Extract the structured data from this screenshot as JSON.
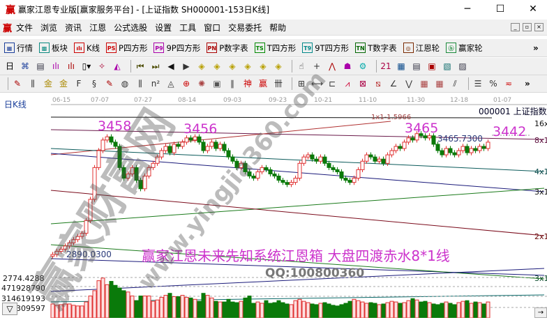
{
  "window": {
    "title": "赢家江恩专业版[赢家服务平台] - [上证指数  SH000001-153日K线]",
    "logo": "赢",
    "minimize": "─",
    "maximize": "☐",
    "close": "✕"
  },
  "menu": {
    "logo": "赢",
    "items": [
      "文件",
      "浏览",
      "资讯",
      "江恩",
      "公式选股",
      "设置",
      "工具",
      "窗口",
      "交易委托",
      "帮助"
    ],
    "mdi_buttons": [
      "_",
      "▫",
      "×"
    ]
  },
  "toolbar1": [
    {
      "icon": "quote-icon",
      "glyph": "▦",
      "color": "#1a3e9a",
      "label": "行情"
    },
    {
      "icon": "sector-icon",
      "glyph": "▩",
      "color": "#0a8a80",
      "label": "板块"
    },
    {
      "icon": "kline-icon",
      "glyph": "ılı",
      "color": "#c00",
      "label": "K线"
    },
    {
      "icon": "ps-icon",
      "glyph": "PS",
      "color": "#c00",
      "label": "P四方形"
    },
    {
      "icon": "p9-icon",
      "glyph": "P9",
      "color": "#a0a",
      "label": "9P四方形"
    },
    {
      "icon": "pn-icon",
      "glyph": "PN",
      "color": "#a00",
      "label": "P数字表"
    },
    {
      "icon": "ts-icon",
      "glyph": "TS",
      "color": "#080",
      "label": "T四方形"
    },
    {
      "icon": "t9-icon",
      "glyph": "T9",
      "color": "#088",
      "label": "9T四方形"
    },
    {
      "icon": "tn-icon",
      "glyph": "TN",
      "color": "#060",
      "label": "T数字表"
    },
    {
      "icon": "gann-wheel-icon",
      "glyph": "◎",
      "color": "#7a2a00",
      "label": "江恩轮"
    },
    {
      "icon": "winner-wheel-icon",
      "glyph": "ⓑ",
      "color": "#1a8a3a",
      "label": "赢家轮"
    }
  ],
  "toolbar1_more": "»",
  "toolbar2": [
    "日▾",
    "⌘",
    "▤",
    "ılı",
    "ılı",
    "▯▾",
    "✧",
    "◭",
    "⏮",
    "⏭",
    "◀",
    "▶",
    "◈",
    "◈",
    "◈",
    "◈",
    "◈",
    "◈",
    "☝",
    "+",
    "⋀",
    "☗",
    "⚙",
    "21",
    "▦",
    "▤",
    "▣",
    "▧",
    "▨"
  ],
  "toolbar3": [
    "✎",
    "⫼",
    "金",
    "金",
    "F",
    "§",
    "✎",
    "◍",
    "⫼",
    "n²",
    "◬",
    "⊕",
    "✺",
    "▣",
    "∥",
    "神",
    "赢",
    "卌",
    "⊞",
    "⟷",
    "⊏",
    "⩘",
    "⊠",
    "⧅",
    "∠",
    "⋁",
    "▦",
    "▦",
    "⫽",
    "☰",
    "%",
    "≂"
  ],
  "toolbar3_more": "»",
  "chart": {
    "period_label": "日K线",
    "security": "000001  上证指数",
    "dates": [
      "06-15",
      "07-07",
      "07-27",
      "08-14",
      "09-03",
      "09-23",
      "10-21",
      "11-10",
      "11-30",
      "12-18",
      "01-07"
    ],
    "peak_labels": [
      "3458",
      "3456",
      "3465",
      "3442"
    ],
    "high_value": "3465.7300",
    "low_value": "2890.0300",
    "line_label": "1x1-1.5966",
    "angle_labels": [
      "16x1",
      "8x1",
      "4x1",
      "3x1",
      "2x1",
      "3x1"
    ],
    "headline": "赢家江恩未来先知系统江恩箱 大盘四渡赤水8*1线",
    "qq": "QQ:100800360",
    "up_color": "#e03030",
    "down_color": "#0a7a0a",
    "annotation_color": "#cc33cc",
    "closes": [
      2890,
      2905,
      2915,
      2930,
      2945,
      2960,
      2975,
      2990,
      3050,
      3150,
      3300,
      3380,
      3430,
      3445,
      3420,
      3400,
      3300,
      3250,
      3270,
      3300,
      3240,
      3200,
      3260,
      3300,
      3320,
      3350,
      3380,
      3400,
      3370,
      3410,
      3400,
      3420,
      3440,
      3430,
      3445,
      3420,
      3380,
      3400,
      3420,
      3390,
      3410,
      3380,
      3350,
      3330,
      3300,
      3320,
      3280,
      3260,
      3250,
      3280,
      3300,
      3290,
      3270,
      3260,
      3240,
      3230,
      3220,
      3230,
      3250,
      3320,
      3350,
      3360,
      3340,
      3330,
      3350,
      3320,
      3300,
      3290,
      3280,
      3250,
      3240,
      3230,
      3250,
      3290,
      3330,
      3360,
      3350,
      3330,
      3340,
      3320,
      3360,
      3380,
      3400,
      3390,
      3420,
      3440,
      3430,
      3460,
      3450,
      3440,
      3450,
      3410,
      3380,
      3360,
      3390,
      3370,
      3360,
      3380,
      3400,
      3370,
      3390,
      3380,
      3400,
      3390,
      3420
    ]
  },
  "volume": {
    "top_label": "2774.4288",
    "axis_labels": [
      "471928790",
      "314619193",
      "157309597"
    ],
    "values": [
      210000000.0,
      190000000.0,
      200000000.0,
      210000000.0,
      210000000.0,
      190000000.0,
      180000000.0,
      180000000.0,
      240000000.0,
      330000000.0,
      410000000.0,
      560000000.0,
      600000000.0,
      500000000.0,
      550000000.0,
      490000000.0,
      450000000.0,
      410000000.0,
      390000000.0,
      330000000.0,
      260000000.0,
      330000000.0,
      330000000.0,
      330000000.0,
      250000000.0,
      270000000.0,
      310000000.0,
      340000000.0,
      370000000.0,
      320000000.0,
      320000000.0,
      340000000.0,
      310000000.0,
      300000000.0,
      280000000.0,
      250000000.0,
      370000000.0,
      340000000.0,
      300000000.0,
      250000000.0,
      240000000.0,
      240000000.0,
      280000000.0,
      240000000.0,
      230000000.0,
      250000000.0,
      300000000.0,
      330000000.0,
      220000000.0,
      240000000.0,
      220000000.0,
      260000000.0,
      220000000.0,
      230000000.0,
      260000000.0,
      230000000.0,
      210000000.0,
      200000000.0,
      260000000.0,
      280000000.0,
      250000000.0,
      230000000.0,
      210000000.0,
      200000000.0,
      220000000.0,
      230000000.0,
      210000000.0,
      190000000.0,
      180000000.0,
      200000000.0,
      220000000.0,
      250000000.0,
      280000000.0,
      260000000.0,
      240000000.0,
      220000000.0,
      230000000.0,
      220000000.0,
      200000000.0,
      210000000.0,
      230000000.0,
      250000000.0,
      240000000.0,
      220000000.0,
      230000000.0,
      260000000.0,
      290000000.0,
      270000000.0,
      240000000.0,
      250000000.0,
      230000000.0,
      210000000.0,
      200000000.0,
      220000000.0,
      240000000.0,
      220000000.0,
      200000000.0,
      230000000.0,
      250000000.0,
      260000000.0,
      220000000.0,
      240000000.0,
      230000000.0,
      210000000.0,
      240000000.0
    ]
  },
  "buttons": {
    "collapse": "▽",
    "scroll_right": "→"
  },
  "watermark": {
    "brand": "赢家财富网",
    "url": "www.yingjia360.com"
  }
}
